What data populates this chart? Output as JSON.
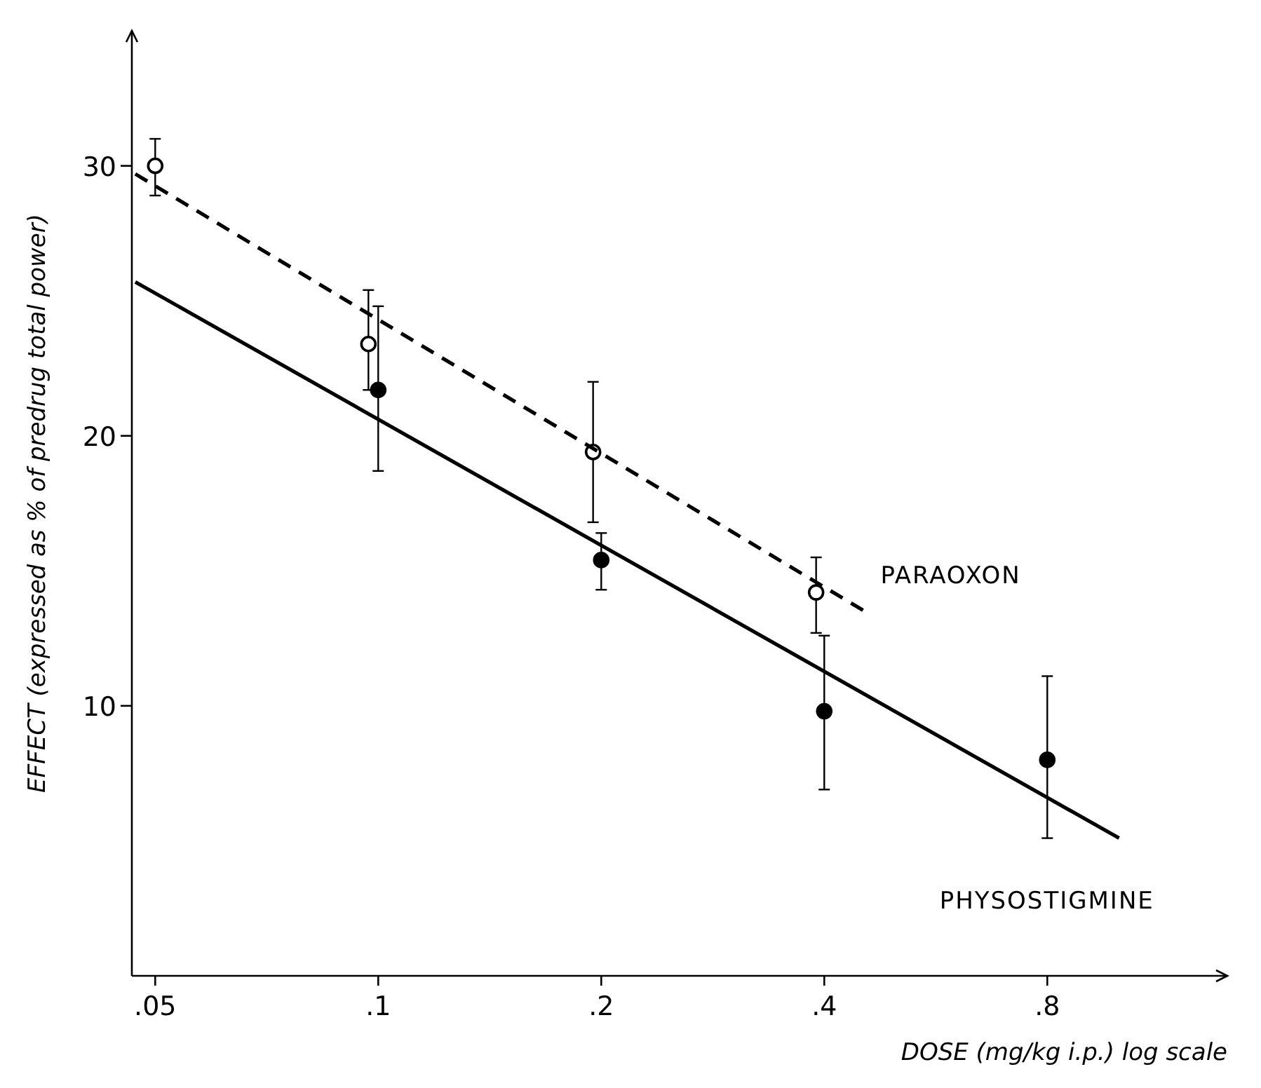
{
  "chart_data": {
    "type": "scatter",
    "xlabel": "DOSE (mg/kg i.p.) log scale",
    "ylabel": "EFFECT (expressed as % of predrug total power)",
    "log": "x",
    "xlim": [
      0.0465,
      1.4
    ],
    "xticks": [
      {
        "value": 0.05,
        "label": ".05"
      },
      {
        "value": 0.1,
        "label": ".1"
      },
      {
        "value": 0.2,
        "label": ".2"
      },
      {
        "value": 0.4,
        "label": ".4"
      },
      {
        "value": 0.8,
        "label": ".8"
      }
    ],
    "ylim": [
      0,
      35
    ],
    "yticks": [
      10,
      20,
      30
    ],
    "grid": false,
    "series": [
      {
        "color": "#ffffff",
        "marker": "circle",
        "x": [
          0.05,
          0.097,
          0.195,
          0.39
        ],
        "values": [
          30,
          23.4,
          19.4,
          14.2
        ],
        "errors": [
          [
            28.9,
            31.0
          ],
          [
            21.7,
            25.4
          ],
          [
            16.8,
            22.0
          ],
          [
            12.7,
            15.5
          ]
        ]
      },
      {
        "color": "#000000",
        "marker": "circle",
        "x": [
          0.1,
          0.2,
          0.4,
          0.8
        ],
        "values": [
          21.7,
          15.4,
          9.8,
          8.0
        ],
        "errors": [
          [
            18.7,
            24.8
          ],
          [
            14.3,
            16.4
          ],
          [
            6.9,
            12.6
          ],
          [
            5.1,
            11.1
          ]
        ]
      },
      {
        "type": "line",
        "name": "PARAOXON",
        "color": "#000000",
        "line_style": "dashed",
        "x": [
          0.047,
          0.46
        ],
        "values": [
          29.7,
          13.4
        ]
      },
      {
        "type": "line",
        "name": "PHYSOSTIGMINE",
        "color": "#000000",
        "line_style": "solid",
        "x": [
          0.047,
          1.0
        ],
        "values": [
          25.7,
          5.1
        ]
      }
    ]
  }
}
